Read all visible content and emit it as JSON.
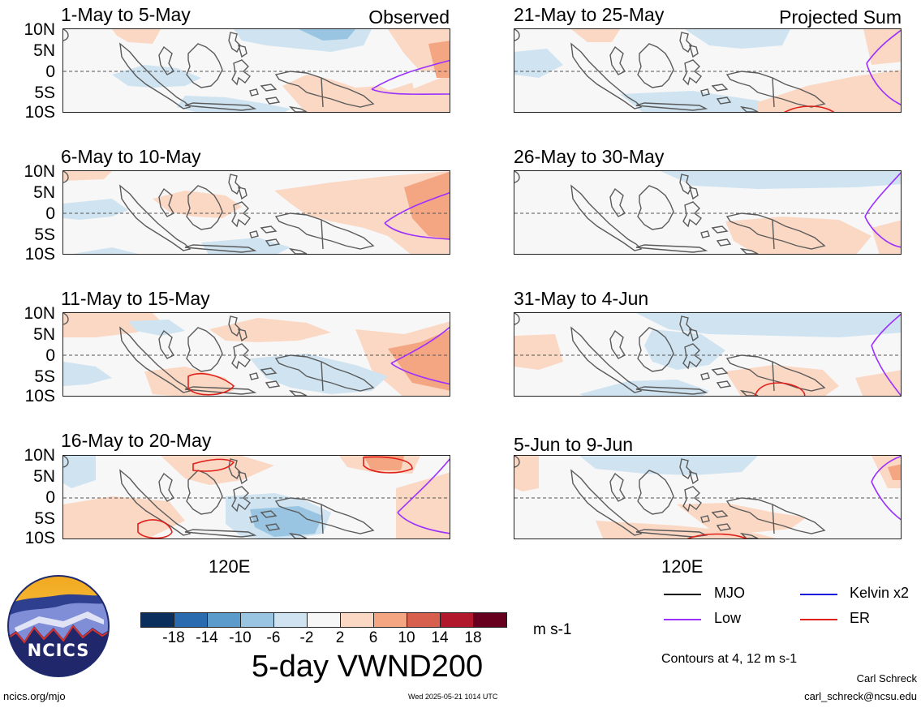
{
  "panels": [
    {
      "title": "1-May to 5-May",
      "tag": "Observed"
    },
    {
      "title": "6-May to 10-May",
      "tag": ""
    },
    {
      "title": "11-May to 15-May",
      "tag": ""
    },
    {
      "title": "16-May to 20-May",
      "tag": ""
    },
    {
      "title": "21-May to 25-May",
      "tag": "Projected Sum"
    },
    {
      "title": "26-May to 30-May",
      "tag": ""
    },
    {
      "title": "31-May to 4-Jun",
      "tag": ""
    },
    {
      "title": "5-Jun to 9-Jun",
      "tag": ""
    }
  ],
  "lat_labels": [
    "10N",
    "5N",
    "0",
    "5S",
    "10S"
  ],
  "lon_label": "120E",
  "colorbar": {
    "ticks": [
      "-18",
      "-14",
      "-10",
      "-6",
      "-2",
      "2",
      "6",
      "10",
      "14",
      "18"
    ],
    "colors": [
      "#0a2f5c",
      "#2a6aae",
      "#5b9bcc",
      "#99c5e2",
      "#cfe3f1",
      "#f7f7f7",
      "#fbd8c4",
      "#f4a582",
      "#d6604d",
      "#b2182b",
      "#67001f"
    ],
    "units": "m s-1"
  },
  "legend": {
    "items": [
      {
        "label": "MJO",
        "color": "#000000"
      },
      {
        "label": "Kelvin x2",
        "color": "#1a1adb"
      },
      {
        "label": "Low",
        "color": "#9b30ff"
      },
      {
        "label": "ER",
        "color": "#e0201a"
      }
    ],
    "contours_note": "Contours at 4, 12 m s-1"
  },
  "main_title": "5-day VWND200",
  "logo_text": "NCICS",
  "footer": {
    "url": "ncics.org/mjo",
    "timestamp": "Wed 2025-05-21 1014 UTC",
    "author": "Carl Schreck",
    "email": "carl_schreck@ncsu.edu"
  }
}
